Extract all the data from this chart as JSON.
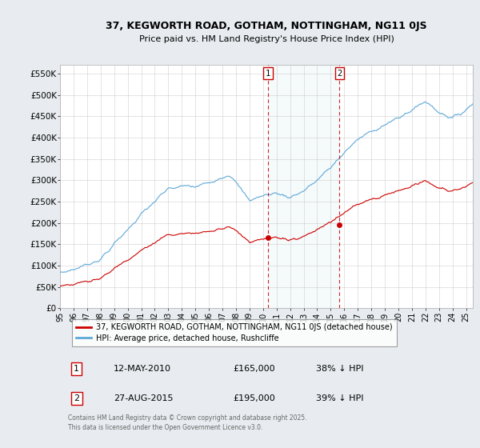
{
  "title_line1": "37, KEGWORTH ROAD, GOTHAM, NOTTINGHAM, NG11 0JS",
  "title_line2": "Price paid vs. HM Land Registry's House Price Index (HPI)",
  "ylabel_ticks": [
    "£0",
    "£50K",
    "£100K",
    "£150K",
    "£200K",
    "£250K",
    "£300K",
    "£350K",
    "£400K",
    "£450K",
    "£500K",
    "£550K"
  ],
  "ytick_values": [
    0,
    50000,
    100000,
    150000,
    200000,
    250000,
    300000,
    350000,
    400000,
    450000,
    500000,
    550000
  ],
  "ylim": [
    0,
    570000
  ],
  "hpi_color": "#5da8d8",
  "price_color": "#cc0000",
  "vline_color": "#cc0000",
  "bg_color": "#e8ecf0",
  "plot_bg": "#ffffff",
  "legend_label_price": "37, KEGWORTH ROAD, GOTHAM, NOTTINGHAM, NG11 0JS (detached house)",
  "legend_label_hpi": "HPI: Average price, detached house, Rushcliffe",
  "transaction1_date": "12-MAY-2010",
  "transaction1_price": "£165,000",
  "transaction1_note": "38% ↓ HPI",
  "transaction1_year": 2010.37,
  "transaction1_price_val": 165000,
  "transaction2_date": "27-AUG-2015",
  "transaction2_price": "£195,000",
  "transaction2_note": "39% ↓ HPI",
  "transaction2_year": 2015.65,
  "transaction2_price_val": 195000,
  "footer": "Contains HM Land Registry data © Crown copyright and database right 2025.\nThis data is licensed under the Open Government Licence v3.0.",
  "xmin": 1995,
  "xmax": 2025.5
}
